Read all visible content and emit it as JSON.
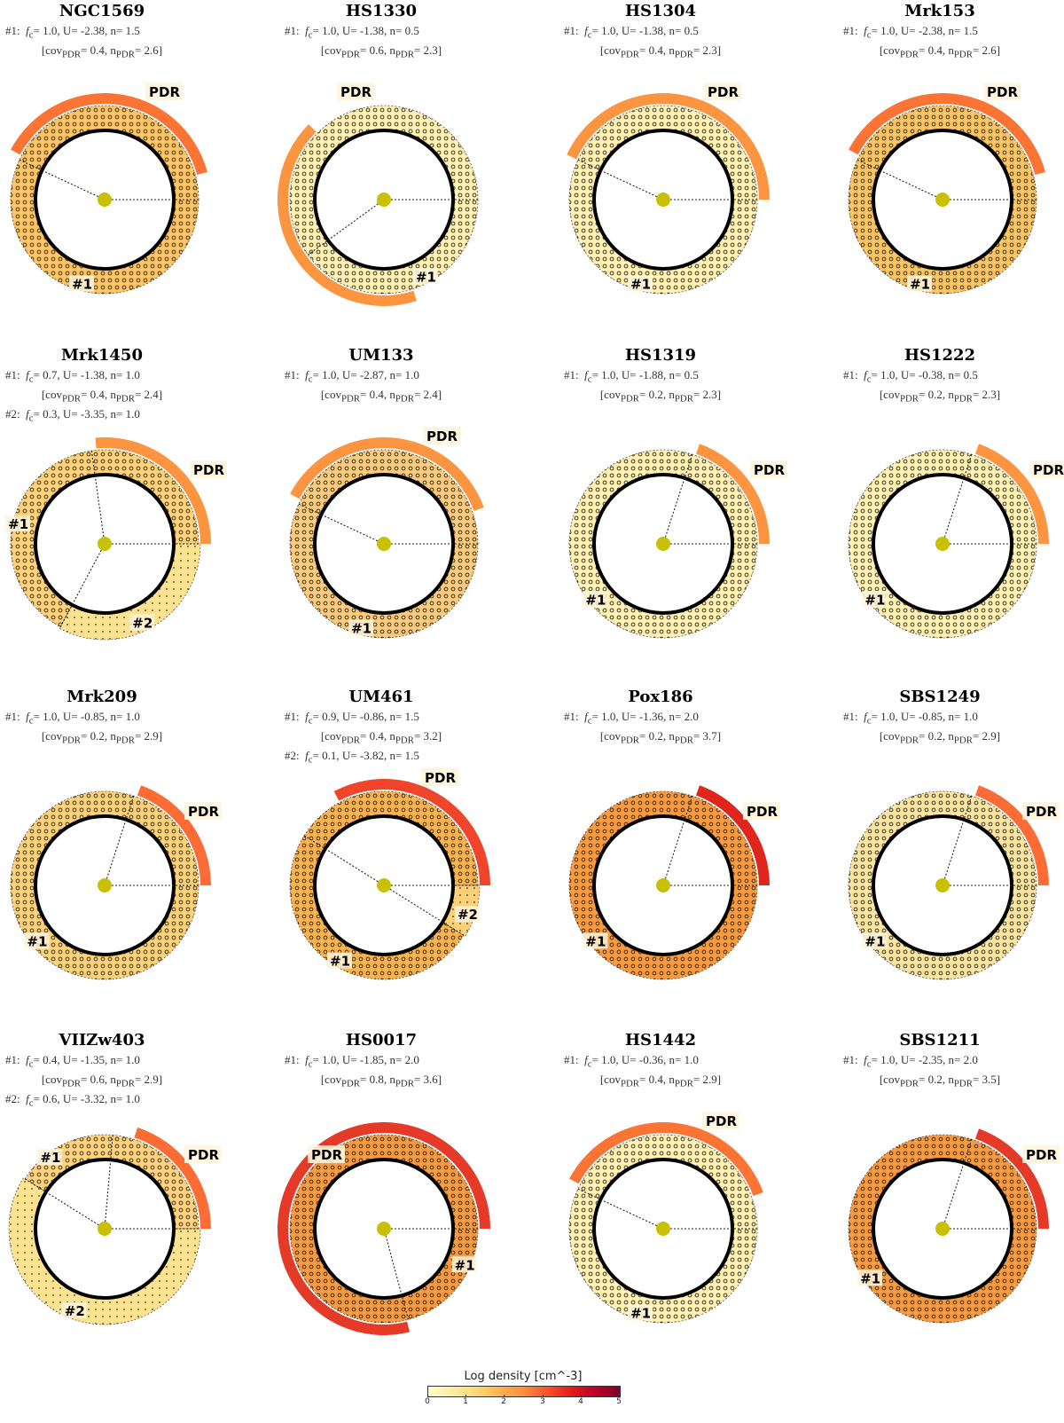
{
  "colorbar": {
    "title": "Log density [cm^-3]",
    "ticks": [
      "0",
      "1",
      "2",
      "3",
      "4",
      "5"
    ],
    "range": [
      0,
      5
    ],
    "colors": [
      "#ffffcc",
      "#ffeda0",
      "#fed976",
      "#feb24c",
      "#fd8d3c",
      "#fc4e2a",
      "#e31a1c",
      "#bd0026",
      "#800026"
    ]
  },
  "panels": [
    {
      "name": "NGC1569",
      "lines": [
        {
          "prefix": "#1:",
          "fc": "1.0",
          "U": "-2.38",
          "n": "1.5"
        }
      ],
      "covs": [
        {
          "cov": "0.4",
          "npdr": "2.6"
        }
      ],
      "pdr_label": "PDR",
      "sector_labels": [
        "#1"
      ]
    },
    {
      "name": "HS1330",
      "lines": [
        {
          "prefix": "#1:",
          "fc": "1.0",
          "U": "-1.38",
          "n": "0.5"
        }
      ],
      "covs": [
        {
          "cov": "0.6",
          "npdr": "2.3"
        }
      ],
      "pdr_label": "PDR",
      "sector_labels": [
        "#1"
      ]
    },
    {
      "name": "HS1304",
      "lines": [
        {
          "prefix": "#1:",
          "fc": "1.0",
          "U": "-1.38",
          "n": "0.5"
        }
      ],
      "covs": [
        {
          "cov": "0.4",
          "npdr": "2.3"
        }
      ],
      "pdr_label": "PDR",
      "sector_labels": [
        "#1"
      ]
    },
    {
      "name": "Mrk153",
      "lines": [
        {
          "prefix": "#1:",
          "fc": "1.0",
          "U": "-2.38",
          "n": "1.5"
        }
      ],
      "covs": [
        {
          "cov": "0.4",
          "npdr": "2.6"
        }
      ],
      "pdr_label": "PDR",
      "sector_labels": [
        "#1"
      ]
    },
    {
      "name": "Mrk1450",
      "lines": [
        {
          "prefix": "#1:",
          "fc": "0.7",
          "U": "-1.38",
          "n": "1.0"
        },
        {
          "prefix": "#2:",
          "fc": "0.3",
          "U": "-3.35",
          "n": "1.0"
        }
      ],
      "covs": [
        {
          "cov": "0.4",
          "npdr": "2.4"
        }
      ],
      "pdr_label": "PDR",
      "sector_labels": [
        "#1",
        "#2"
      ]
    },
    {
      "name": "UM133",
      "lines": [
        {
          "prefix": "#1:",
          "fc": "1.0",
          "U": "-2.87",
          "n": "1.0"
        }
      ],
      "covs": [
        {
          "cov": "0.4",
          "npdr": "2.4"
        }
      ],
      "pdr_label": "PDR",
      "sector_labels": [
        "#1"
      ]
    },
    {
      "name": "HS1319",
      "lines": [
        {
          "prefix": "#1:",
          "fc": "1.0",
          "U": "-1.88",
          "n": "0.5"
        }
      ],
      "covs": [
        {
          "cov": "0.2",
          "npdr": "2.3"
        }
      ],
      "pdr_label": "PDR",
      "sector_labels": [
        "#1"
      ]
    },
    {
      "name": "HS1222",
      "lines": [
        {
          "prefix": "#1:",
          "fc": "1.0",
          "U": "-0.38",
          "n": "0.5"
        }
      ],
      "covs": [
        {
          "cov": "0.2",
          "npdr": "2.3"
        }
      ],
      "pdr_label": "PDR",
      "sector_labels": [
        "#1"
      ]
    },
    {
      "name": "Mrk209",
      "lines": [
        {
          "prefix": "#1:",
          "fc": "1.0",
          "U": "-0.85",
          "n": "1.0"
        }
      ],
      "covs": [
        {
          "cov": "0.2",
          "npdr": "2.9"
        }
      ],
      "pdr_label": "PDR",
      "sector_labels": [
        "#1"
      ]
    },
    {
      "name": "UM461",
      "lines": [
        {
          "prefix": "#1:",
          "fc": "0.9",
          "U": "-0.86",
          "n": "1.5"
        },
        {
          "prefix": "#2:",
          "fc": "0.1",
          "U": "-3.82",
          "n": "1.5"
        }
      ],
      "covs": [
        {
          "cov": "0.4",
          "npdr": "3.2"
        }
      ],
      "pdr_label": "PDR",
      "sector_labels": [
        "#1",
        "#2"
      ]
    },
    {
      "name": "Pox186",
      "lines": [
        {
          "prefix": "#1:",
          "fc": "1.0",
          "U": "-1.36",
          "n": "2.0"
        }
      ],
      "covs": [
        {
          "cov": "0.2",
          "npdr": "3.7"
        }
      ],
      "pdr_label": "PDR",
      "sector_labels": [
        "#1"
      ]
    },
    {
      "name": "SBS1249",
      "lines": [
        {
          "prefix": "#1:",
          "fc": "1.0",
          "U": "-0.85",
          "n": "1.0"
        }
      ],
      "covs": [
        {
          "cov": "0.2",
          "npdr": "2.9"
        }
      ],
      "pdr_label": "PDR",
      "sector_labels": [
        "#1"
      ]
    },
    {
      "name": "VIIZw403",
      "lines": [
        {
          "prefix": "#1:",
          "fc": "0.4",
          "U": "-1.35",
          "n": "1.0"
        },
        {
          "prefix": "#2:",
          "fc": "0.6",
          "U": "-3.32",
          "n": "1.0"
        }
      ],
      "covs": [
        {
          "cov": "0.6",
          "npdr": "2.9"
        }
      ],
      "pdr_label": "PDR",
      "sector_labels": [
        "#1",
        "#2"
      ]
    },
    {
      "name": "HS0017",
      "lines": [
        {
          "prefix": "#1:",
          "fc": "1.0",
          "U": "-1.85",
          "n": "2.0"
        }
      ],
      "covs": [
        {
          "cov": "0.8",
          "npdr": "3.6"
        }
      ],
      "pdr_label": "PDR",
      "sector_labels": [
        "#1"
      ]
    },
    {
      "name": "HS1442",
      "lines": [
        {
          "prefix": "#1:",
          "fc": "1.0",
          "U": "-0.36",
          "n": "1.0"
        }
      ],
      "covs": [
        {
          "cov": "0.4",
          "npdr": "2.9"
        }
      ],
      "pdr_label": "PDR",
      "sector_labels": [
        "#1"
      ]
    },
    {
      "name": "SBS1211",
      "lines": [
        {
          "prefix": "#1:",
          "fc": "1.0",
          "U": "-2.35",
          "n": "2.0"
        }
      ],
      "covs": [
        {
          "cov": "0.2",
          "npdr": "3.5"
        }
      ],
      "pdr_label": "PDR",
      "sector_labels": [
        "#1"
      ]
    }
  ]
}
